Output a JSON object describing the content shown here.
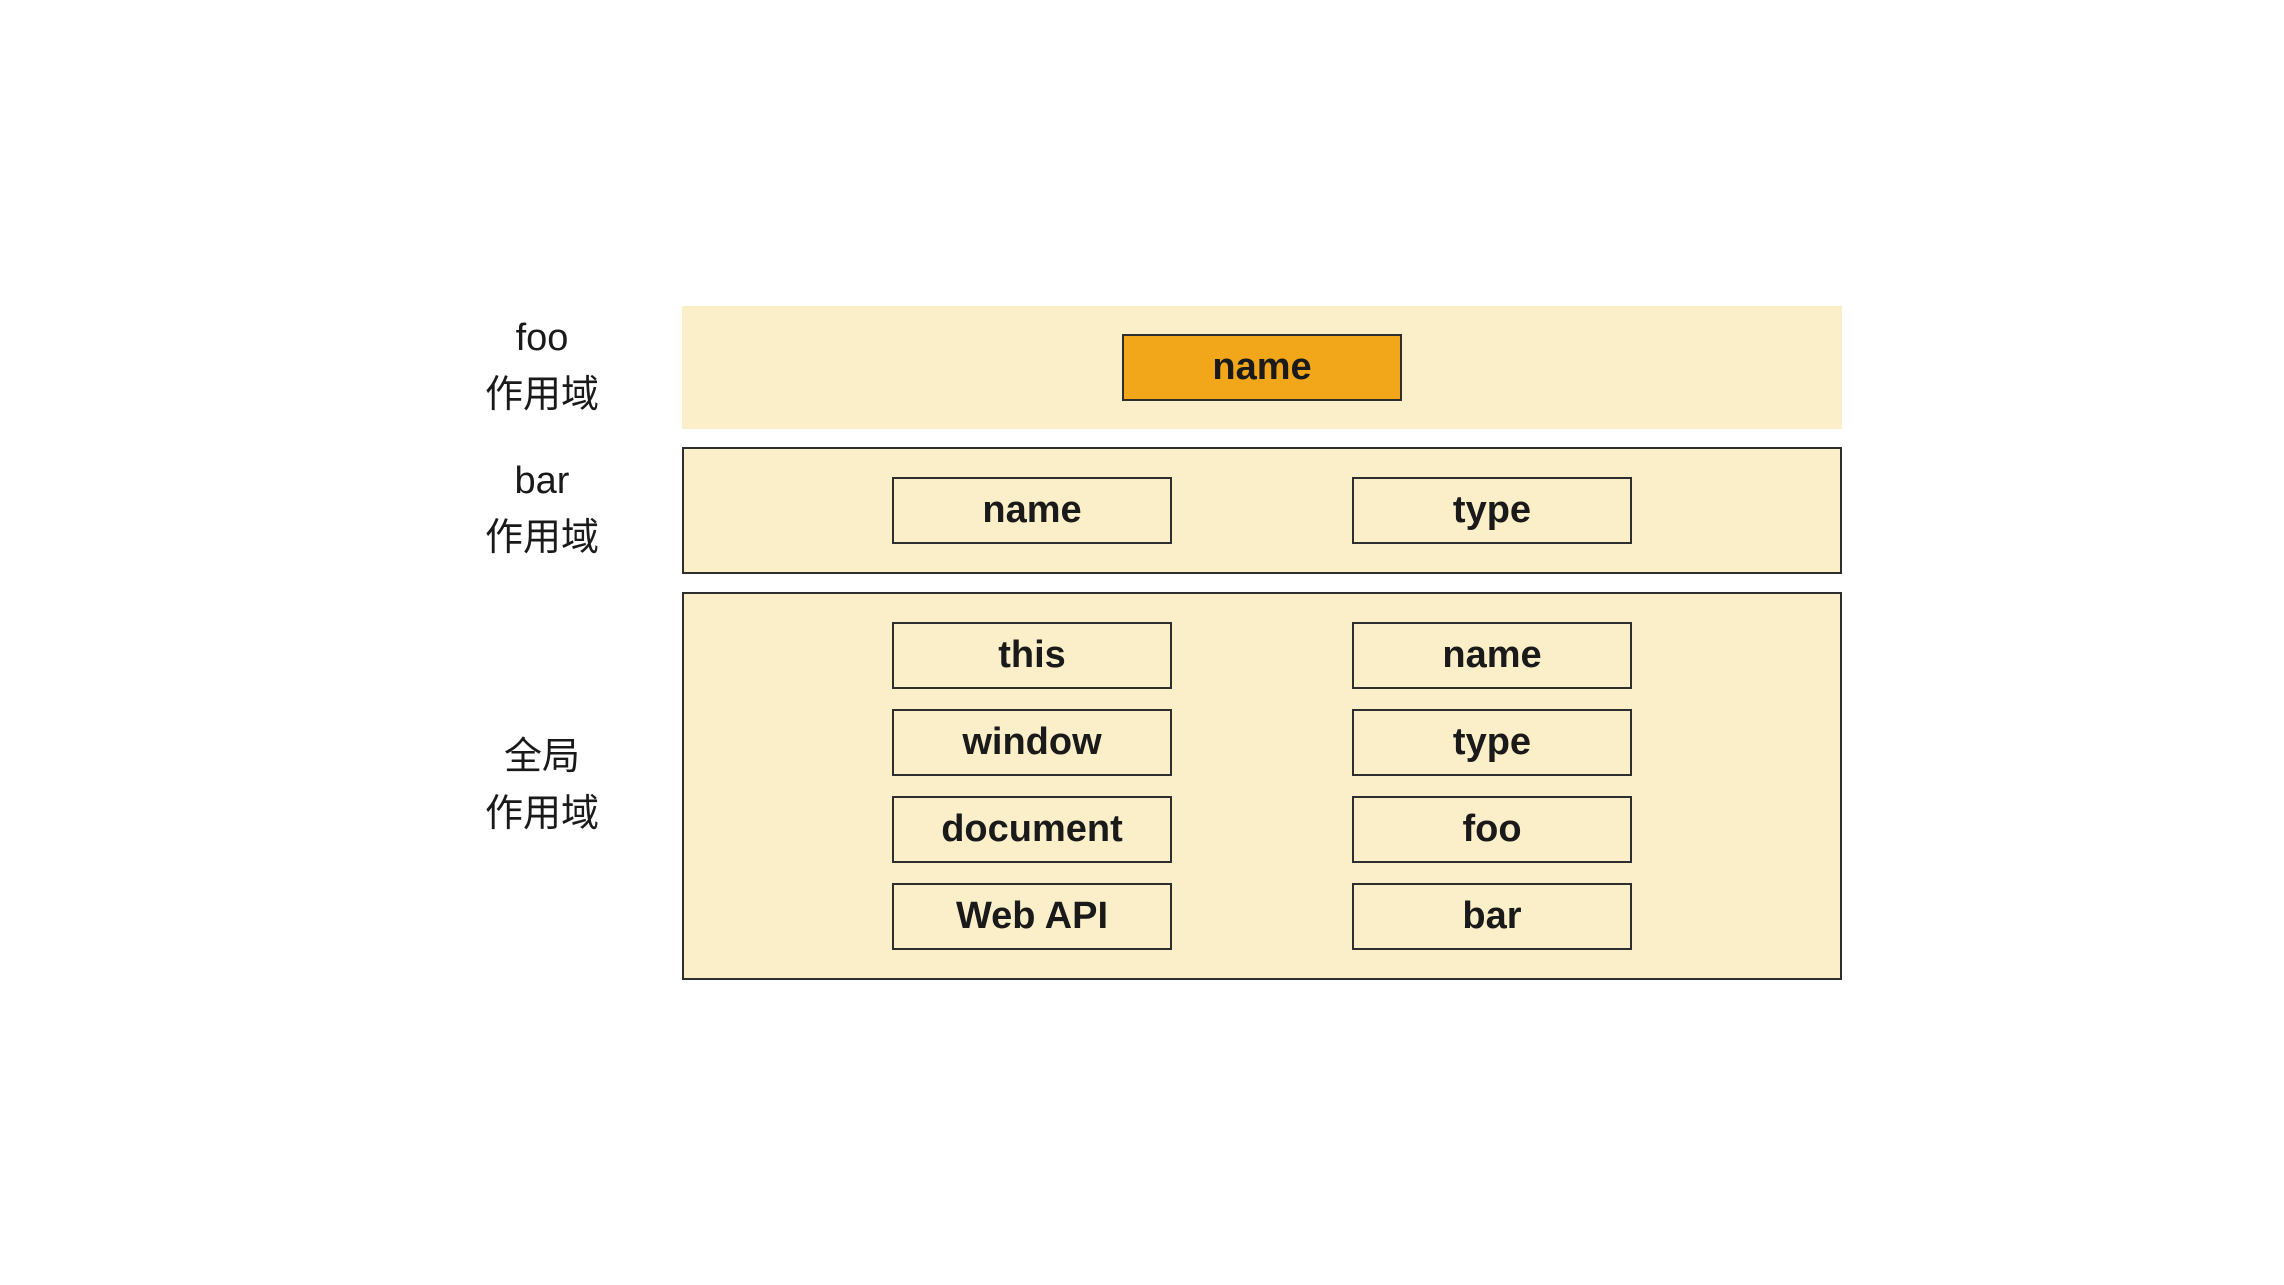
{
  "diagram": {
    "type": "scope-diagram",
    "background_color": "#ffffff",
    "scope_background": "#fbefc9",
    "box_border_color": "#2e2e2e",
    "highlight_color": "#f2a71b",
    "text_color": "#1a1a1a",
    "font_family": "Comic Sans MS",
    "label_fontsize": 38,
    "box_fontsize": 38,
    "border_width": 2,
    "row_gap": 18,
    "column_gap": 180,
    "scopes": [
      {
        "id": "foo",
        "label_line1": "foo",
        "label_line2": "作用域",
        "has_outer_border": false,
        "layout": "single",
        "items": [
          {
            "text": "name",
            "highlighted": true
          }
        ]
      },
      {
        "id": "bar",
        "label_line1": "bar",
        "label_line2": "作用域",
        "has_outer_border": true,
        "layout": "row2",
        "items": [
          {
            "text": "name",
            "highlighted": false
          },
          {
            "text": "type",
            "highlighted": false
          }
        ]
      },
      {
        "id": "global",
        "label_line1": "全局",
        "label_line2": "作用域",
        "has_outer_border": true,
        "layout": "grid4x2",
        "items": [
          {
            "text": "this",
            "highlighted": false
          },
          {
            "text": "name",
            "highlighted": false
          },
          {
            "text": "window",
            "highlighted": false
          },
          {
            "text": "type",
            "highlighted": false
          },
          {
            "text": "document",
            "highlighted": false
          },
          {
            "text": "foo",
            "highlighted": false
          },
          {
            "text": "Web API",
            "highlighted": false
          },
          {
            "text": "bar",
            "highlighted": false
          }
        ]
      }
    ]
  }
}
